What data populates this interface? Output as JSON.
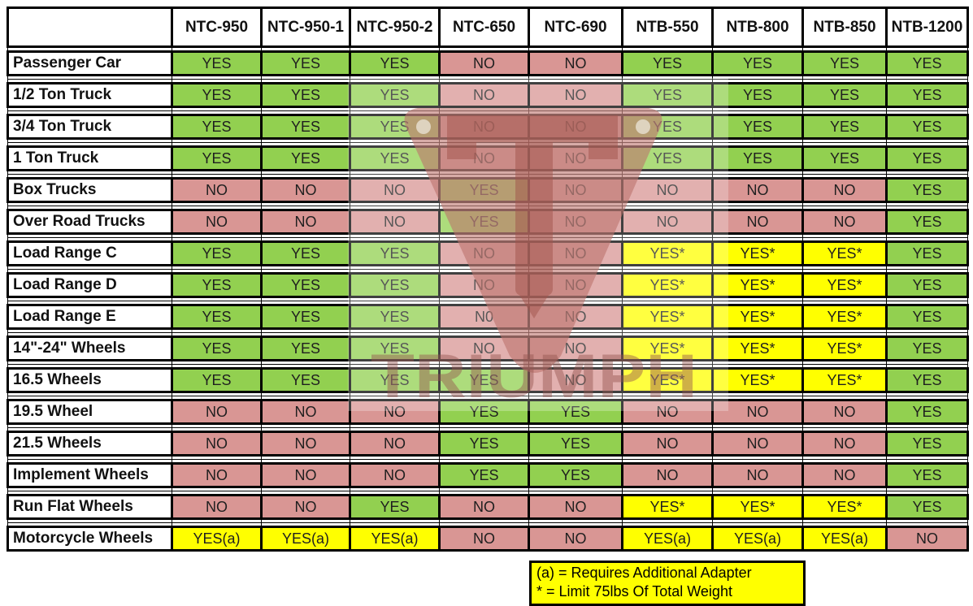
{
  "chart_data": {
    "type": "table",
    "title": "",
    "corner": "",
    "columns": [
      "NTC-950",
      "NTC-950-1",
      "NTC-950-2",
      "NTC-650",
      "NTC-690",
      "NTB-550",
      "NTB-800",
      "NTB-850",
      "NTB-1200"
    ],
    "rows": [
      {
        "label": "Passenger Car",
        "values": [
          "YES",
          "YES",
          "YES",
          "NO",
          "NO",
          "YES",
          "YES",
          "YES",
          "YES"
        ]
      },
      {
        "label": "1/2 Ton Truck",
        "values": [
          "YES",
          "YES",
          "YES",
          "NO",
          "NO",
          "YES",
          "YES",
          "YES",
          "YES"
        ]
      },
      {
        "label": "3/4 Ton Truck",
        "values": [
          "YES",
          "YES",
          "YES",
          "NO",
          "NO",
          "YES",
          "YES",
          "YES",
          "YES"
        ]
      },
      {
        "label": "1 Ton Truck",
        "values": [
          "YES",
          "YES",
          "YES",
          "NO",
          "NO",
          "YES",
          "YES",
          "YES",
          "YES"
        ]
      },
      {
        "label": "Box Trucks",
        "values": [
          "NO",
          "NO",
          "NO",
          "YES",
          "NO",
          "NO",
          "NO",
          "NO",
          "YES"
        ]
      },
      {
        "label": "Over Road Trucks",
        "values": [
          "NO",
          "NO",
          "NO",
          "YES",
          "NO",
          "NO",
          "NO",
          "NO",
          "YES"
        ]
      },
      {
        "label": "Load Range C",
        "values": [
          "YES",
          "YES",
          "YES",
          "NO",
          "NO",
          "YES*",
          "YES*",
          "YES*",
          "YES"
        ]
      },
      {
        "label": "Load Range D",
        "values": [
          "YES",
          "YES",
          "YES",
          "NO",
          "NO",
          "YES*",
          "YES*",
          "YES*",
          "YES"
        ]
      },
      {
        "label": "Load Range E",
        "values": [
          "YES",
          "YES",
          "YES",
          "N0",
          "NO",
          "YES*",
          "YES*",
          "YES*",
          "YES"
        ]
      },
      {
        "label": "14\"-24\" Wheels",
        "values": [
          "YES",
          "YES",
          "YES",
          "NO",
          "NO",
          "YES*",
          "YES*",
          "YES*",
          "YES"
        ]
      },
      {
        "label": "16.5 Wheels",
        "values": [
          "YES",
          "YES",
          "YES",
          "YES",
          "NO",
          "YES*",
          "YES*",
          "YES*",
          "YES"
        ]
      },
      {
        "label": "19.5 Wheel",
        "values": [
          "NO",
          "NO",
          "NO",
          "YES",
          "YES",
          "NO",
          "NO",
          "NO",
          "YES"
        ]
      },
      {
        "label": "21.5 Wheels",
        "values": [
          "NO",
          "NO",
          "NO",
          "YES",
          "YES",
          "NO",
          "NO",
          "NO",
          "YES"
        ]
      },
      {
        "label": "Implement Wheels",
        "values": [
          "NO",
          "NO",
          "NO",
          "YES",
          "YES",
          "NO",
          "NO",
          "NO",
          "YES"
        ]
      },
      {
        "label": "Run Flat Wheels",
        "values": [
          "NO",
          "NO",
          "YES",
          "NO",
          "NO",
          "YES*",
          "YES*",
          "YES*",
          "YES"
        ]
      },
      {
        "label": "Motorcycle Wheels",
        "values": [
          "YES(a)",
          "YES(a)",
          "YES(a)",
          "NO",
          "NO",
          "YES(a)",
          "YES(a)",
          "YES(a)",
          "NO"
        ]
      }
    ],
    "legend": [
      "(a) = Requires Additional Adapter",
      "* = Limit 75lbs Of Total Weight"
    ],
    "cell_color_coding": {
      "YES": "#92D050",
      "NO": "#D99694",
      "YES*": "#FFFF00",
      "YES(a)": "#FFFF00"
    },
    "layout_hints": {
      "grid": "on",
      "legend_position": "bottom-right"
    }
  },
  "watermark": {
    "text": "TRIUMPH",
    "badge_color": "#bd736d"
  }
}
